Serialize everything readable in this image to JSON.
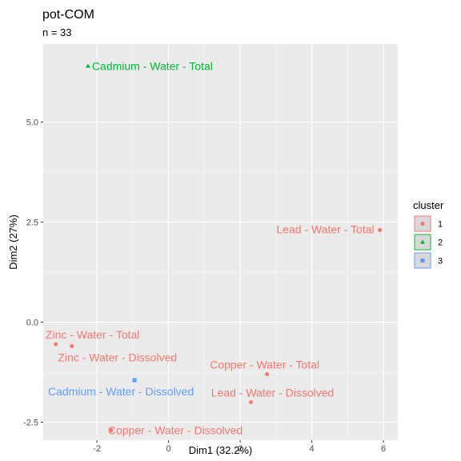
{
  "chart_data": {
    "type": "scatter",
    "title": "pot-COM",
    "subtitle": "n = 33",
    "xlabel": "Dim1 (32.2%)",
    "ylabel": "Dim2 (27%)",
    "xlim": [
      -3.5,
      6.4
    ],
    "ylim": [
      -2.95,
      6.95
    ],
    "x_ticks": [
      -2,
      0,
      2,
      4,
      6
    ],
    "x_tick_labels": [
      "-2",
      "0",
      "2",
      "4",
      "6"
    ],
    "y_ticks": [
      -2.5,
      0.0,
      2.5,
      5.0
    ],
    "y_tick_labels": [
      "-2.5",
      "0.0",
      "2.5",
      "5.0"
    ],
    "grid": true,
    "legend": {
      "title": "cluster",
      "position": "right",
      "entries": [
        {
          "label": "1",
          "color": "#F8766D",
          "shape": "circle"
        },
        {
          "label": "2",
          "color": "#00BA38",
          "shape": "triangle"
        },
        {
          "label": "3",
          "color": "#619CFF",
          "shape": "square"
        }
      ]
    },
    "points": [
      {
        "label": "Cadmium - Water - Total",
        "x": -2.25,
        "y": 6.4,
        "cluster": "2"
      },
      {
        "label": "Lead - Water - Total",
        "x": 5.9,
        "y": 2.3,
        "cluster": "1"
      },
      {
        "label": "Zinc - Water - Total",
        "x": -3.15,
        "y": -0.55,
        "cluster": "1"
      },
      {
        "label": "Zinc - Water - Dissolved",
        "x": -2.7,
        "y": -0.6,
        "cluster": "1"
      },
      {
        "label": "Copper - Water - Total",
        "x": 2.75,
        "y": -1.3,
        "cluster": "1"
      },
      {
        "label": "Cadmium - Water - Dissolved",
        "x": -0.95,
        "y": -1.45,
        "cluster": "3"
      },
      {
        "label": "Lead - Water - Dissolved",
        "x": 2.3,
        "y": -2.0,
        "cluster": "1"
      },
      {
        "label": "Copper - Water - Dissolved",
        "x": -1.6,
        "y": -2.7,
        "cluster": "1"
      }
    ]
  }
}
